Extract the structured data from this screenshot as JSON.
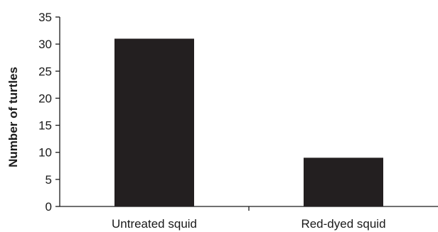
{
  "chart_data": {
    "type": "bar",
    "title": "",
    "xlabel": "",
    "ylabel": "Number of  turtles",
    "categories": [
      "Untreated squid",
      "Red-dyed squid"
    ],
    "values": [
      31,
      9
    ],
    "ylim": [
      0,
      35
    ],
    "yticks": [
      0,
      5,
      10,
      15,
      20,
      25,
      30,
      35
    ],
    "grid": false,
    "legend": "none",
    "bar_color": "#231f20"
  }
}
